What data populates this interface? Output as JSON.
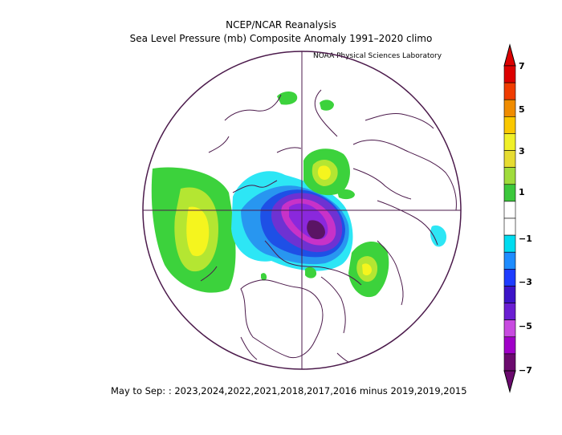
{
  "title": "NCEP/NCAR Reanalysis",
  "subtitle": "Sea Level Pressure (mb) Composite Anomaly 1991–2020 climo",
  "credit": "NOAA Physical Sciences Laboratory",
  "footer": "May to Sep: : 2023,2024,2022,2021,2018,2017,2016 minus 2019,2019,2015",
  "colorbar": {
    "labels": [
      "7",
      "5",
      "3",
      "1",
      "−1",
      "−3",
      "−5",
      "−7"
    ],
    "colors": [
      "#6b0a6e",
      "#a000c8",
      "#c84be0",
      "#6a1ed2",
      "#3c14c8",
      "#1e3cff",
      "#1e8cff",
      "#00dcf0",
      "#ffffff",
      "#ffffff",
      "#3cc83c",
      "#a0dc3c",
      "#e6dc32",
      "#f0f028",
      "#fac800",
      "#f08c00",
      "#f03c00",
      "#dc0000"
    ]
  },
  "colors": {
    "coast": "#4b1a4b",
    "green": "#3cd23c",
    "yellowgreen": "#b4e632",
    "yellow": "#f5f51e",
    "cyan": "#2de6f5",
    "lightblue": "#2896f0",
    "blue": "#1e50e6",
    "purple": "#6e32d2",
    "violet": "#8a28dc",
    "magenta": "#c832c8",
    "darkpurple": "#5a1464"
  }
}
